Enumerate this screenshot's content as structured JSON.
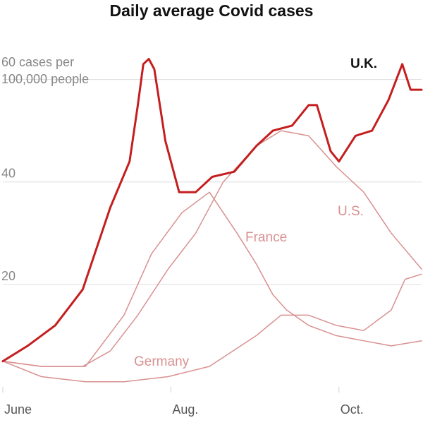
{
  "chart_data": {
    "type": "line",
    "title": "Daily average Covid cases",
    "ylabel": "",
    "y_unit_label_line1": "60 cases per",
    "y_unit_label_line2": "100,000 people",
    "ylim": [
      0,
      70
    ],
    "grid": true,
    "x_ticks": [
      {
        "date": "2021-06-01",
        "label": "June"
      },
      {
        "date": "2021-08-01",
        "label": "Aug."
      },
      {
        "date": "2021-10-01",
        "label": "Oct."
      }
    ],
    "y_ticks": [
      {
        "value": 20,
        "label": "20"
      },
      {
        "value": 40,
        "label": "40"
      },
      {
        "value": 60,
        "label": ""
      }
    ],
    "xlim": [
      "2021-06-01",
      "2021-10-31"
    ],
    "series": [
      {
        "name": "U.K.",
        "label": "U.K.",
        "color": "#c41e1e",
        "emphasis": true,
        "points": [
          [
            "2021-06-01",
            5
          ],
          [
            "2021-06-10",
            8
          ],
          [
            "2021-06-20",
            12
          ],
          [
            "2021-06-30",
            19
          ],
          [
            "2021-07-10",
            35
          ],
          [
            "2021-07-17",
            44
          ],
          [
            "2021-07-20",
            55
          ],
          [
            "2021-07-22",
            63
          ],
          [
            "2021-07-24",
            64
          ],
          [
            "2021-07-26",
            62
          ],
          [
            "2021-07-30",
            48
          ],
          [
            "2021-08-04",
            38
          ],
          [
            "2021-08-10",
            38
          ],
          [
            "2021-08-16",
            41
          ],
          [
            "2021-08-24",
            42
          ],
          [
            "2021-09-01",
            47
          ],
          [
            "2021-09-07",
            50
          ],
          [
            "2021-09-14",
            51
          ],
          [
            "2021-09-20",
            55
          ],
          [
            "2021-09-23",
            55
          ],
          [
            "2021-09-28",
            46
          ],
          [
            "2021-10-01",
            44
          ],
          [
            "2021-10-07",
            49
          ],
          [
            "2021-10-13",
            50
          ],
          [
            "2021-10-19",
            56
          ],
          [
            "2021-10-24",
            63
          ],
          [
            "2021-10-27",
            58
          ],
          [
            "2021-10-31",
            58
          ]
        ]
      },
      {
        "name": "U.S.",
        "label": "U.S.",
        "color": "#d99090",
        "points": [
          [
            "2021-06-01",
            5
          ],
          [
            "2021-06-15",
            4
          ],
          [
            "2021-06-30",
            4
          ],
          [
            "2021-07-10",
            7
          ],
          [
            "2021-07-20",
            14
          ],
          [
            "2021-07-31",
            23
          ],
          [
            "2021-08-10",
            30
          ],
          [
            "2021-08-20",
            40
          ],
          [
            "2021-09-01",
            47
          ],
          [
            "2021-09-10",
            50
          ],
          [
            "2021-09-20",
            49
          ],
          [
            "2021-09-30",
            43
          ],
          [
            "2021-10-10",
            38
          ],
          [
            "2021-10-20",
            30
          ],
          [
            "2021-10-31",
            23
          ]
        ]
      },
      {
        "name": "France",
        "label": "France",
        "color": "#d99090",
        "points": [
          [
            "2021-06-01",
            5
          ],
          [
            "2021-06-15",
            4
          ],
          [
            "2021-07-01",
            4
          ],
          [
            "2021-07-15",
            14
          ],
          [
            "2021-07-25",
            26
          ],
          [
            "2021-08-05",
            34
          ],
          [
            "2021-08-15",
            38
          ],
          [
            "2021-08-25",
            30
          ],
          [
            "2021-09-01",
            24
          ],
          [
            "2021-09-07",
            18
          ],
          [
            "2021-09-12",
            15
          ],
          [
            "2021-09-20",
            12
          ],
          [
            "2021-09-30",
            10
          ],
          [
            "2021-10-10",
            9
          ],
          [
            "2021-10-20",
            8
          ],
          [
            "2021-10-31",
            9
          ]
        ]
      },
      {
        "name": "Germany",
        "label": "Germany",
        "color": "#d99090",
        "points": [
          [
            "2021-06-01",
            5
          ],
          [
            "2021-06-15",
            2
          ],
          [
            "2021-07-01",
            1
          ],
          [
            "2021-07-15",
            1
          ],
          [
            "2021-07-31",
            2
          ],
          [
            "2021-08-15",
            4
          ],
          [
            "2021-09-01",
            10
          ],
          [
            "2021-09-10",
            14
          ],
          [
            "2021-09-20",
            14
          ],
          [
            "2021-09-30",
            12
          ],
          [
            "2021-10-10",
            11
          ],
          [
            "2021-10-20",
            15
          ],
          [
            "2021-10-25",
            21
          ],
          [
            "2021-10-31",
            22
          ]
        ]
      }
    ]
  }
}
